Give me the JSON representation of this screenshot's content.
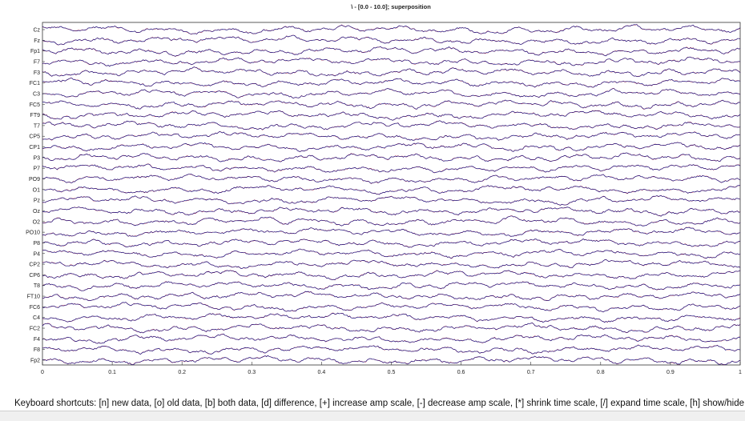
{
  "chart_data": {
    "type": "line",
    "title": "\\ - [0.0 - 10.0]; superposition",
    "xlabel": "",
    "ylabel": "",
    "xlim": [
      0,
      1
    ],
    "x_ticks": [
      "0",
      "0.1",
      "0.2",
      "0.3",
      "0.4",
      "0.5",
      "0.6",
      "0.7",
      "0.8",
      "0.9",
      "1"
    ],
    "grid": false,
    "channels": [
      "Cz",
      "Fz",
      "Fp1",
      "F7",
      "F3",
      "FC1",
      "C3",
      "FC5",
      "FT9",
      "T7",
      "CP5",
      "CP1",
      "P3",
      "P7",
      "PO9",
      "O1",
      "Pz",
      "Oz",
      "O2",
      "PO10",
      "P8",
      "P4",
      "CP2",
      "CP6",
      "T8",
      "FT10",
      "FC6",
      "C4",
      "FC2",
      "F4",
      "F8",
      "Fp2"
    ],
    "series": [
      {
        "color": "#1f1f8c"
      },
      {
        "color": "#d42020"
      }
    ]
  },
  "footer": {
    "shortcuts": "Keyboard shortcuts: [n] new data, [o] old data, [b] both data, [d] difference, [+] increase amp scale, [-] decrease amp scale, [*] shrink time scale, [/] expand time scale, [h] show/hide slider."
  }
}
